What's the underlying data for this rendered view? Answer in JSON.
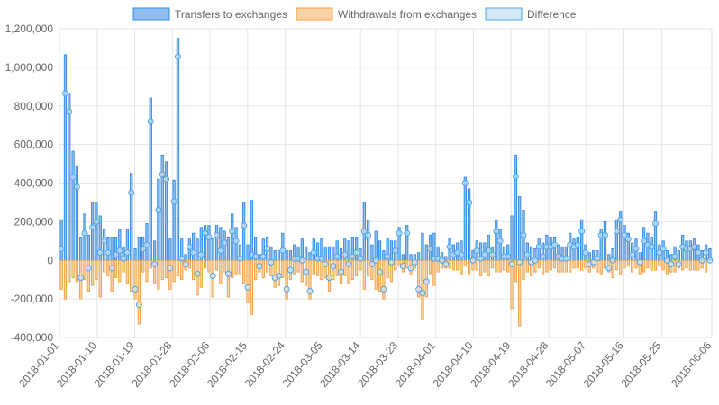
{
  "chart_data": {
    "type": "bar",
    "legend_position": "top",
    "grid": true,
    "ylim": [
      -400000,
      1200000
    ],
    "yticks": [
      "1,200,000",
      "1,000,000",
      "800,000",
      "600,000",
      "400,000",
      "200,000",
      "0",
      "-200,000",
      "-400,000"
    ],
    "ytick_values": [
      1200000,
      1000000,
      800000,
      600000,
      400000,
      200000,
      0,
      -200000,
      -400000
    ],
    "x_start": "2018-01-01",
    "x_end": "2018-06-06",
    "xtick_labels": [
      "2018-01-01",
      "2018-01-10",
      "2018-01-19",
      "2018-01-28",
      "2018-02-06",
      "2018-02-15",
      "2018-02-24",
      "2018-03-05",
      "2018-03-14",
      "2018-03-23",
      "2018-04-01",
      "2018-04-10",
      "2018-04-19",
      "2018-04-28",
      "2018-05-07",
      "2018-05-16",
      "2018-05-25",
      "2018-06-06"
    ],
    "series": [
      {
        "name": "Transfers to exchanges",
        "type": "bar",
        "color": "#2f8ae6",
        "fill": "#8fbff2"
      },
      {
        "name": "Withdrawals from exchanges",
        "type": "bar",
        "color": "#f0a040",
        "fill": "#fdd3a6"
      },
      {
        "name": "Difference",
        "type": "line-points",
        "color": "#4aa3e8",
        "fill": "#d4e9f8"
      }
    ],
    "notes": "Daily values per series are listed in the series_values block below.",
    "series_values": {
      "transfers": [
        210000,
        1065000,
        865000,
        565000,
        490000,
        120000,
        240000,
        130000,
        300000,
        300000,
        230000,
        160000,
        120000,
        120000,
        120000,
        160000,
        70000,
        160000,
        450000,
        60000,
        120000,
        120000,
        190000,
        840000,
        100000,
        420000,
        545000,
        510000,
        110000,
        415000,
        1150000,
        110000,
        30000,
        110000,
        140000,
        110000,
        170000,
        180000,
        180000,
        110000,
        180000,
        170000,
        150000,
        120000,
        240000,
        170000,
        80000,
        300000,
        80000,
        310000,
        120000,
        30000,
        110000,
        120000,
        70000,
        50000,
        50000,
        140000,
        50000,
        50000,
        80000,
        70000,
        110000,
        70000,
        40000,
        110000,
        90000,
        110000,
        70000,
        70000,
        70000,
        100000,
        60000,
        110000,
        100000,
        120000,
        120000,
        60000,
        300000,
        210000,
        80000,
        150000,
        100000,
        50000,
        110000,
        100000,
        100000,
        170000,
        30000,
        180000,
        30000,
        30000,
        40000,
        140000,
        80000,
        130000,
        140000,
        70000,
        40000,
        20000,
        110000,
        80000,
        90000,
        100000,
        430000,
        370000,
        50000,
        100000,
        90000,
        90000,
        130000,
        70000,
        210000,
        160000,
        70000,
        80000,
        230000,
        545000,
        330000,
        260000,
        90000,
        70000,
        60000,
        110000,
        90000,
        130000,
        120000,
        120000,
        80000,
        70000,
        70000,
        140000,
        110000,
        120000,
        210000,
        80000,
        40000,
        50000,
        50000,
        160000,
        200000,
        30000,
        60000,
        210000,
        250000,
        180000,
        140000,
        90000,
        110000,
        40000,
        170000,
        140000,
        120000,
        250000,
        80000,
        100000,
        50000,
        30000,
        70000,
        50000,
        130000,
        100000,
        100000,
        110000,
        80000,
        50000,
        80000,
        60000
      ],
      "withdrawals": [
        -150000,
        -200000,
        -110000,
        -90000,
        -110000,
        -200000,
        -100000,
        -160000,
        -130000,
        -100000,
        -190000,
        -60000,
        -80000,
        -160000,
        -90000,
        -110000,
        -60000,
        -120000,
        -160000,
        -200000,
        -330000,
        -60000,
        -110000,
        -40000,
        -120000,
        -150000,
        -100000,
        -90000,
        -150000,
        -110000,
        -80000,
        -100000,
        -50000,
        -40000,
        -100000,
        -180000,
        -140000,
        -40000,
        -60000,
        -190000,
        -50000,
        -120000,
        -60000,
        -190000,
        -90000,
        -70000,
        -70000,
        -120000,
        -220000,
        -280000,
        -100000,
        -60000,
        -90000,
        -60000,
        -80000,
        -140000,
        -130000,
        -90000,
        -200000,
        -100000,
        -70000,
        -60000,
        -110000,
        -130000,
        -200000,
        -70000,
        -80000,
        -100000,
        -90000,
        -160000,
        -100000,
        -80000,
        -120000,
        -80000,
        -120000,
        -100000,
        -80000,
        -50000,
        -150000,
        -80000,
        -100000,
        -150000,
        -160000,
        -200000,
        -90000,
        -110000,
        -50000,
        -30000,
        -60000,
        -40000,
        -70000,
        -40000,
        -190000,
        -310000,
        -190000,
        -70000,
        -130000,
        -60000,
        -40000,
        -40000,
        -40000,
        -50000,
        -50000,
        -70000,
        -30000,
        -70000,
        -50000,
        -50000,
        -80000,
        -60000,
        -80000,
        -40000,
        -60000,
        -60000,
        -50000,
        -60000,
        -250000,
        -110000,
        -340000,
        -100000,
        -60000,
        -80000,
        -60000,
        -40000,
        -70000,
        -60000,
        -50000,
        -40000,
        -60000,
        -60000,
        -60000,
        -60000,
        -40000,
        -40000,
        -50000,
        -40000,
        -60000,
        -40000,
        -60000,
        -70000,
        -40000,
        -60000,
        -90000,
        -50000,
        -70000,
        -40000,
        -30000,
        -60000,
        -40000,
        -70000,
        -60000,
        -40000,
        -50000,
        -50000,
        -30000,
        -50000,
        -70000,
        -60000,
        -60000,
        -40000,
        -50000,
        -40000,
        -50000,
        -50000,
        -50000,
        -40000,
        -60000
      ],
      "difference": [
        60000,
        865000,
        770000,
        430000,
        380000,
        -90000,
        140000,
        -40000,
        170000,
        200000,
        40000,
        100000,
        40000,
        -40000,
        30000,
        50000,
        10000,
        40000,
        350000,
        -150000,
        -230000,
        60000,
        80000,
        720000,
        -20000,
        260000,
        445000,
        420000,
        -40000,
        305000,
        1055000,
        10000,
        -20000,
        70000,
        40000,
        -70000,
        30000,
        140000,
        120000,
        -80000,
        130000,
        50000,
        90000,
        -70000,
        150000,
        100000,
        10000,
        180000,
        -140000,
        30000,
        20000,
        -30000,
        20000,
        60000,
        -10000,
        -90000,
        -80000,
        50000,
        -150000,
        -50000,
        10000,
        10000,
        0,
        -60000,
        -160000,
        40000,
        10000,
        10000,
        -20000,
        -90000,
        -30000,
        20000,
        -60000,
        30000,
        -20000,
        20000,
        40000,
        10000,
        150000,
        130000,
        -20000,
        0,
        -60000,
        -150000,
        20000,
        -10000,
        50000,
        140000,
        -30000,
        140000,
        -40000,
        -10000,
        -150000,
        -170000,
        -110000,
        60000,
        10000,
        10000,
        0,
        -20000,
        70000,
        30000,
        40000,
        30000,
        400000,
        300000,
        0,
        50000,
        10000,
        30000,
        50000,
        30000,
        150000,
        100000,
        20000,
        20000,
        -20000,
        435000,
        -10000,
        130000,
        30000,
        -10000,
        0,
        70000,
        20000,
        70000,
        70000,
        80000,
        20000,
        10000,
        10000,
        80000,
        70000,
        80000,
        150000,
        40000,
        -20000,
        -10000,
        10000,
        130000,
        130000,
        -40000,
        0,
        150000,
        210000,
        130000,
        110000,
        30000,
        60000,
        -10000,
        100000,
        80000,
        70000,
        190000,
        40000,
        60000,
        0,
        -20000,
        20000,
        -20000,
        70000,
        60000,
        60000,
        70000,
        40000,
        0,
        40000,
        0
      ]
    }
  },
  "legend": {
    "transfers_label": "Transfers to exchanges",
    "withdrawals_label": "Withdrawals from exchanges",
    "difference_label": "Difference"
  }
}
